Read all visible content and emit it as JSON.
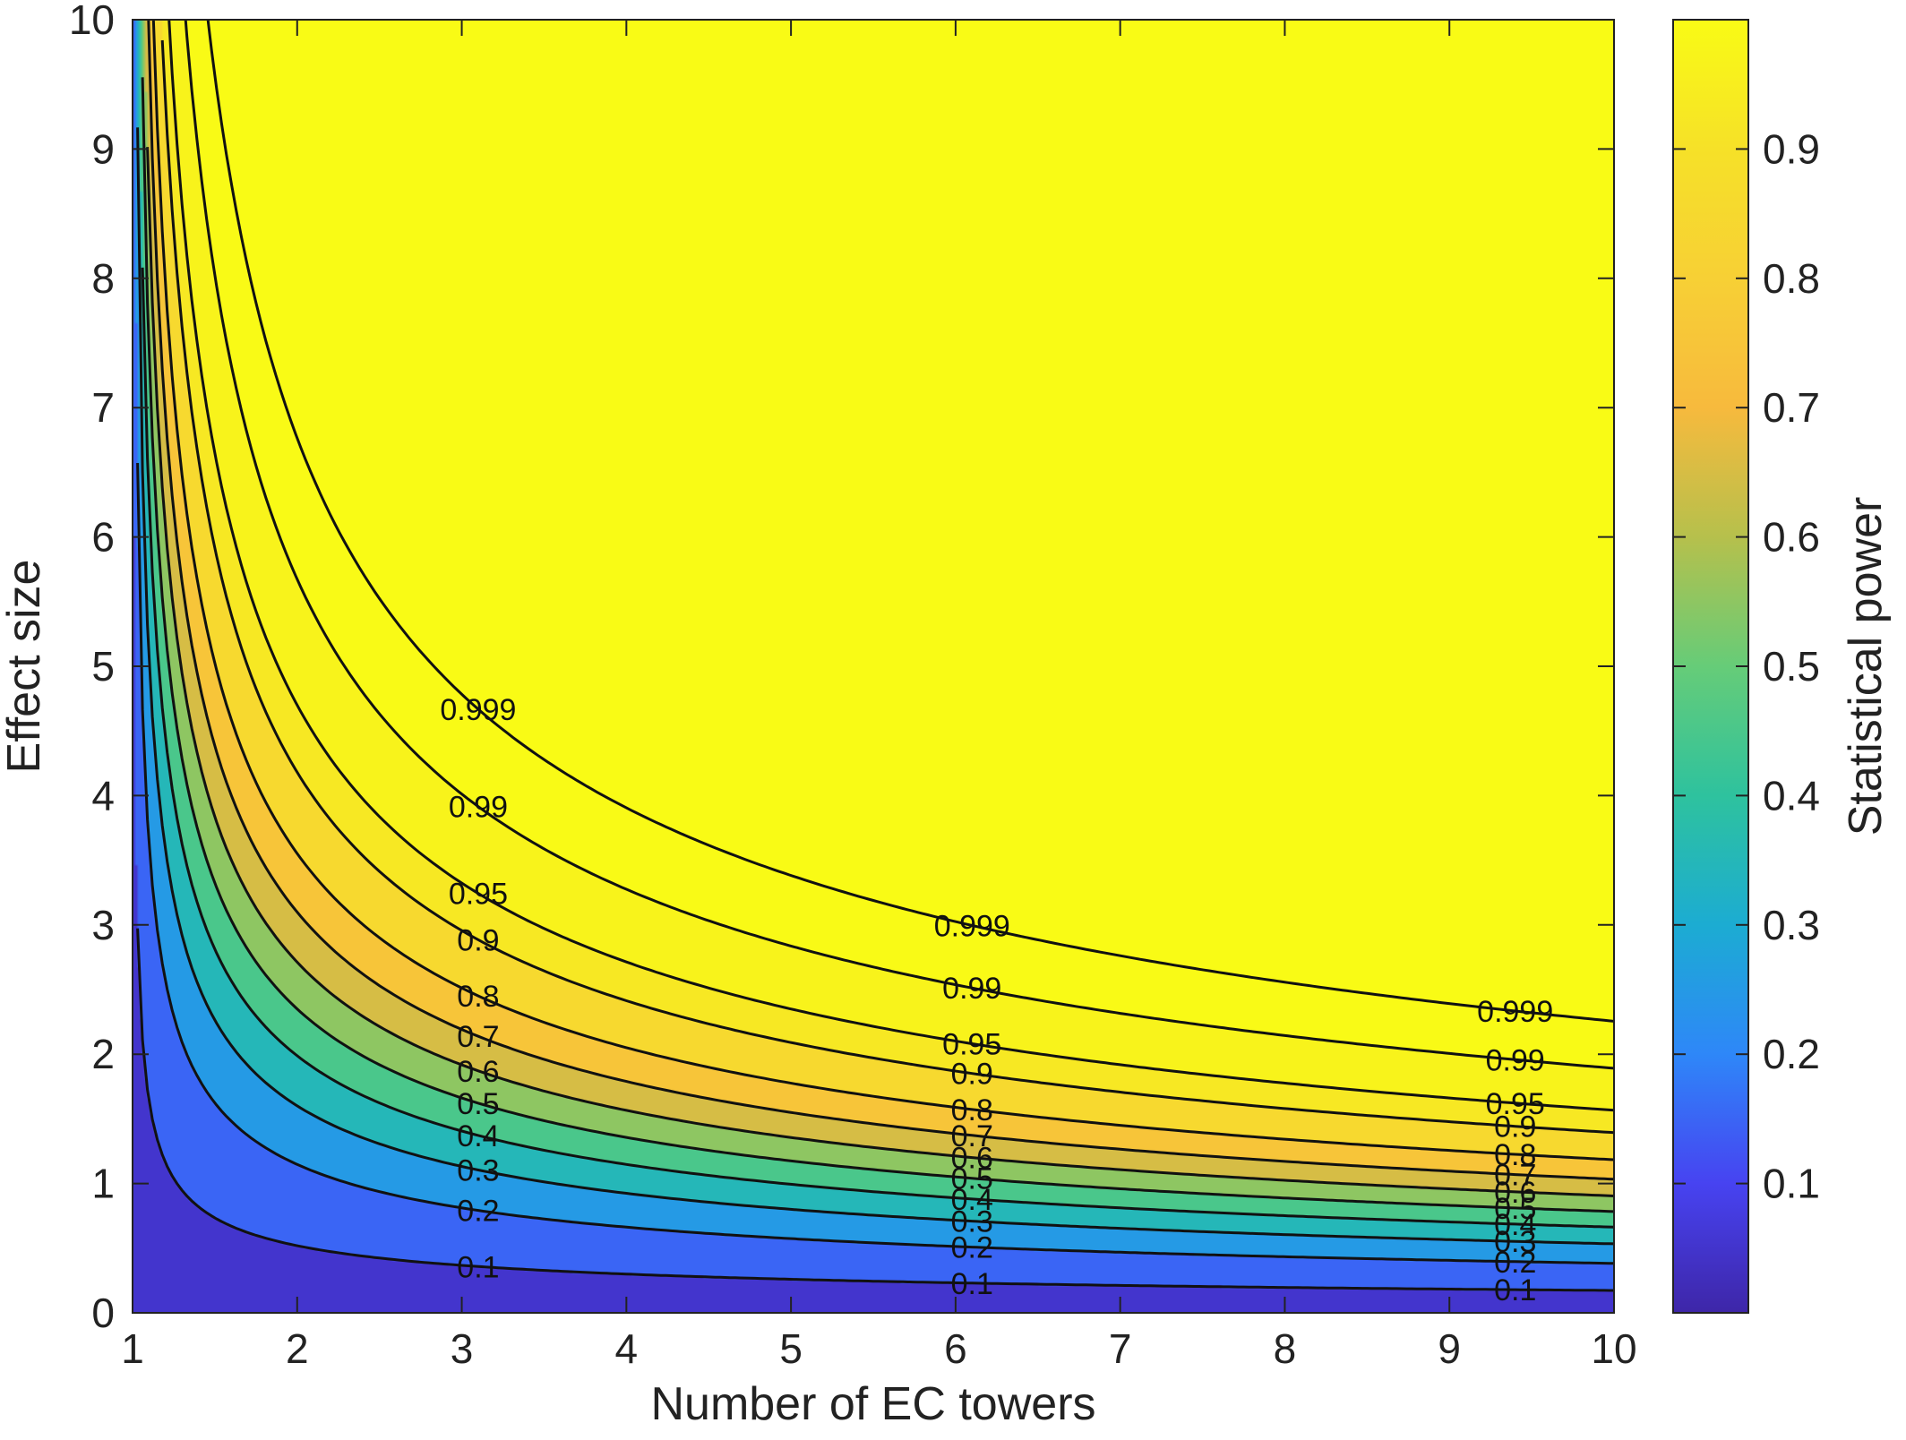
{
  "chart_data": {
    "type": "heatmap",
    "subtype": "filled-contour",
    "title": "",
    "xlabel": "Number of EC towers",
    "ylabel": "Effect size",
    "colorbar_label": "Statistical power",
    "xlim": [
      1,
      10
    ],
    "ylim": [
      0,
      10
    ],
    "clim": [
      0,
      1
    ],
    "x_ticks": [
      "1",
      "2",
      "3",
      "4",
      "5",
      "6",
      "7",
      "8",
      "9",
      "10"
    ],
    "y_ticks": [
      "0",
      "1",
      "2",
      "3",
      "4",
      "5",
      "6",
      "7",
      "8",
      "9",
      "10"
    ],
    "colorbar_ticks": [
      "0.1",
      "0.2",
      "0.3",
      "0.4",
      "0.5",
      "0.6",
      "0.7",
      "0.8",
      "0.9"
    ],
    "colormap": [
      "#3e26a8",
      "#4743f1",
      "#2e87f8",
      "#1cacd2",
      "#2ec29e",
      "#66cc78",
      "#b6c04c",
      "#f7ba3d",
      "#f7d035",
      "#f6e128",
      "#f9fb15"
    ],
    "contour_levels": [
      0.1,
      0.2,
      0.3,
      0.4,
      0.5,
      0.6,
      0.7,
      0.8,
      0.9,
      0.95,
      0.99,
      0.999
    ],
    "contour_labels": [
      "0.1",
      "0.2",
      "0.3",
      "0.4",
      "0.5",
      "0.6",
      "0.7",
      "0.8",
      "0.9",
      "0.95",
      "0.99",
      "0.999"
    ],
    "grid": false,
    "description_of_model": "power increases with both number of towers and effect size"
  }
}
